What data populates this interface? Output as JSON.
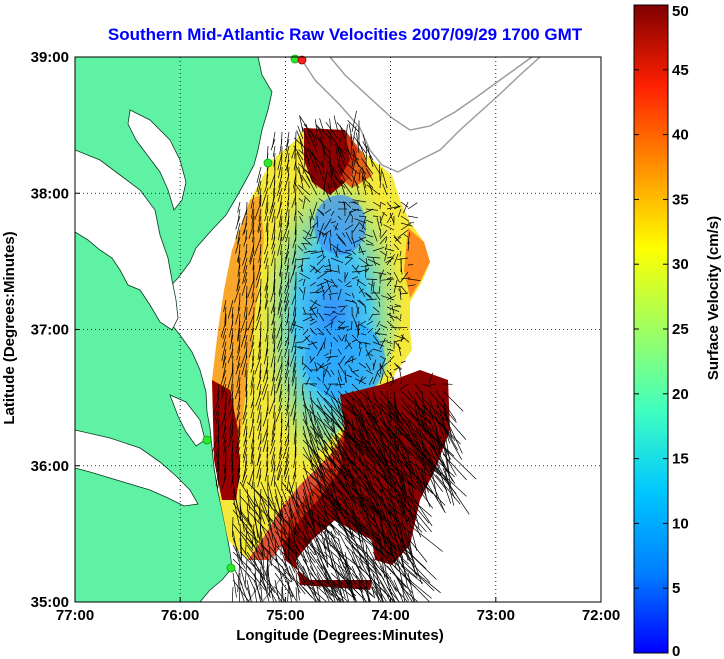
{
  "chart_data": {
    "type": "heatmap",
    "title": "Southern Mid-Atlantic Raw Velocities 2007/09/29 1700 GMT",
    "xlabel": "Longitude (Degrees:Minutes)",
    "ylabel": "Latitude (Degrees:Minutes)",
    "colorbar_label": "Surface Velocity (cm/s)",
    "x_ticks": [
      "77:00",
      "76:00",
      "75:00",
      "74:00",
      "73:00",
      "72:00"
    ],
    "x_tick_values": [
      -77,
      -76,
      -75,
      -74,
      -73,
      -72
    ],
    "y_ticks": [
      "39:00",
      "38:00",
      "37:00",
      "36:00",
      "35:00"
    ],
    "y_tick_values": [
      39,
      38,
      37,
      36,
      35
    ],
    "xlim": [
      -77,
      -72
    ],
    "ylim": [
      35,
      39
    ],
    "colorbar_ticks": [
      0,
      5,
      10,
      15,
      20,
      25,
      30,
      35,
      40,
      45,
      50
    ],
    "colorbar_range": [
      0,
      50
    ],
    "colormap": "jet",
    "grid": "dotted",
    "colors": {
      "title": "#0000ff",
      "land": "#5ff2a4",
      "coastline": "#000000",
      "bathymetry": "#9a9a9a",
      "arrows": "#000000",
      "station_markers": "#2ee82e",
      "station_marker_red": "#ff2020"
    },
    "velocity_regions": [
      {
        "name": "northern lobe",
        "speed_cm_s": 48
      },
      {
        "name": "central low-speed zone",
        "speed_cm_s": 8
      },
      {
        "name": "western band",
        "speed_cm_s": 30
      },
      {
        "name": "southern high-speed zone",
        "speed_cm_s": 50
      }
    ]
  }
}
